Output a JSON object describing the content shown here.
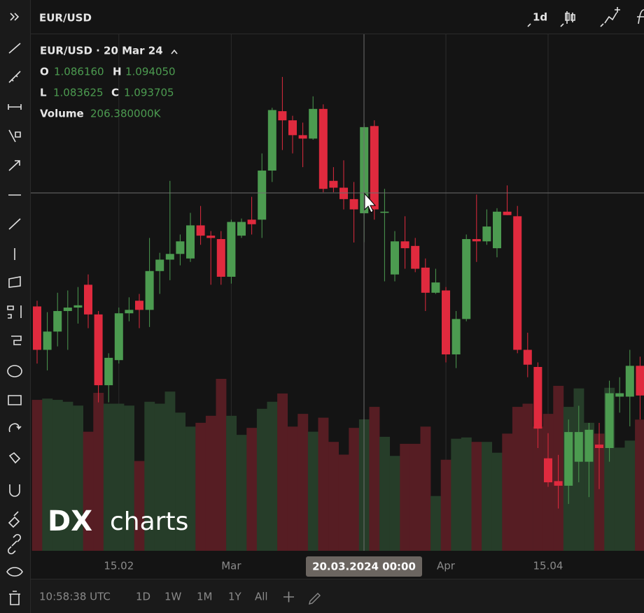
{
  "header": {
    "symbol": "EUR/USD",
    "period": "1d"
  },
  "legend": {
    "title": "EUR/USD · 20 Mar 24",
    "open_label": "O",
    "open": "1.086160",
    "high_label": "H",
    "high": "1.094050",
    "low_label": "L",
    "low": "1.083625",
    "close_label": "C",
    "close": "1.093705",
    "volume_label": "Volume",
    "volume": "206.380000K"
  },
  "chart_data": {
    "type": "candlestick",
    "categories": [
      null,
      null,
      null,
      null,
      null,
      null,
      null,
      null,
      "15.02",
      null,
      null,
      null,
      null,
      null,
      null,
      null,
      null,
      null,
      null,
      "Mar",
      null,
      null,
      null,
      null,
      null,
      null,
      null,
      null,
      null,
      null,
      null,
      null,
      null,
      null,
      null,
      null,
      null,
      null,
      null,
      null,
      "Apr",
      null,
      null,
      null,
      null,
      null,
      null,
      null,
      null,
      null,
      "15.04",
      null,
      null,
      null,
      null,
      null,
      null,
      null,
      null,
      null
    ],
    "open": [
      1.078,
      1.0742,
      1.0758,
      1.0776,
      1.0779,
      1.0799,
      1.0773,
      1.0711,
      1.0733,
      1.0774,
      1.0785,
      1.0777,
      1.0811,
      1.0821,
      1.0826,
      1.0822,
      1.0851,
      1.0842,
      1.0839,
      1.0806,
      1.0842,
      1.0856,
      1.0856,
      1.0899,
      1.0951,
      1.0943,
      1.093,
      1.0927,
      1.0953,
      1.089,
      1.0884,
      1.0874,
      1.08616,
      1.0938,
      1.0862,
      1.0808,
      1.0837,
      1.0833,
      1.0814,
      1.0792,
      1.0794,
      1.0738,
      1.0769,
      1.0839,
      1.0837,
      1.0831,
      1.0863,
      1.0859,
      1.0742,
      1.0727,
      1.0647,
      1.0627,
      1.0623,
      1.0644,
      1.0644,
      1.0659,
      1.0656,
      1.0701,
      1.0701,
      1.0728
    ],
    "high": [
      1.0785,
      1.0775,
      1.0792,
      1.0794,
      1.0797,
      1.0808,
      1.0776,
      1.0739,
      1.0779,
      1.0788,
      1.0791,
      1.084,
      1.0827,
      1.089,
      1.0843,
      1.0862,
      1.0868,
      1.0846,
      1.0846,
      1.0856,
      1.0857,
      1.0876,
      1.0914,
      1.0954,
      1.0981,
      1.0947,
      1.0941,
      1.0964,
      1.0957,
      1.0902,
      1.0908,
      1.0889,
      1.09405,
      1.0943,
      1.0883,
      1.0846,
      1.0859,
      1.084,
      1.0822,
      1.0813,
      1.0797,
      1.0776,
      1.0843,
      1.0878,
      1.0865,
      1.0866,
      1.0886,
      1.0868,
      1.0757,
      1.0731,
      1.0669,
      1.065,
      1.0681,
      1.0693,
      1.0678,
      1.0678,
      1.0715,
      1.0718,
      1.0742,
      1.0736
    ],
    "low": [
      1.073,
      1.0724,
      1.0745,
      1.0742,
      1.0765,
      1.0761,
      1.0696,
      1.0696,
      1.073,
      1.0767,
      1.0761,
      1.0762,
      1.0791,
      1.0803,
      1.0816,
      1.0819,
      1.0834,
      1.0799,
      1.0799,
      1.08,
      1.084,
      1.0843,
      1.084,
      1.0889,
      1.0917,
      1.0914,
      1.0902,
      1.0926,
      1.088,
      1.088,
      1.0865,
      1.0836,
      1.083625,
      1.0856,
      1.0802,
      1.0802,
      1.0813,
      1.081,
      1.0776,
      1.0791,
      1.0731,
      1.0726,
      1.0767,
      1.0819,
      1.0834,
      1.0823,
      1.086,
      1.0739,
      1.0718,
      1.0656,
      1.0622,
      1.0603,
      1.0607,
      1.0626,
      1.0613,
      1.062,
      1.0644,
      1.0687,
      1.0675,
      1.0681
    ],
    "close": [
      1.0742,
      1.0758,
      1.0776,
      1.0779,
      1.0781,
      1.0773,
      1.0711,
      1.0735,
      1.0774,
      1.0777,
      1.0777,
      1.0811,
      1.0821,
      1.0826,
      1.0837,
      1.0851,
      1.0842,
      1.084,
      1.0806,
      1.0854,
      1.0854,
      1.0852,
      1.0899,
      1.0952,
      1.0943,
      1.093,
      1.0927,
      1.0953,
      1.0883,
      1.0884,
      1.0874,
      1.0865,
      1.093705,
      1.0865,
      1.0863,
      1.0837,
      1.0831,
      1.0813,
      1.0792,
      1.0801,
      1.0738,
      1.0769,
      1.0839,
      1.0837,
      1.085,
      1.0863,
      1.086,
      1.0742,
      1.0729,
      1.0673,
      1.0626,
      1.0623,
      1.067,
      1.067,
      1.0672,
      1.0656,
      1.0704,
      1.0704,
      1.0728,
      1.0702
    ],
    "volume": [
      237,
      239,
      237,
      234,
      228,
      187,
      248,
      231,
      231,
      228,
      141,
      234,
      231,
      250,
      217,
      195,
      201,
      212,
      270,
      212,
      182,
      193,
      223,
      234,
      247,
      195,
      215,
      187,
      209,
      171,
      151,
      193,
      206.38,
      226,
      179,
      149,
      168,
      168,
      195,
      86,
      143,
      176,
      178,
      171,
      171,
      154,
      184,
      226,
      231,
      195,
      215,
      259,
      226,
      255,
      201,
      184,
      256,
      162,
      173,
      206
    ],
    "ylim": [
      1.0566,
      1.1019
    ],
    "volume_ylim": [
      0,
      270
    ],
    "grid": true,
    "up_color": "#4c9b50",
    "down_color": "#e02a3e",
    "up_volume_color": "#263d29",
    "down_volume_color": "#561d23",
    "crosshair_label": "20.03.2024 00:00"
  },
  "logo": {
    "mark": "DX",
    "text": "charts"
  },
  "footer": {
    "time": "10:58:38 UTC",
    "ranges": [
      "1D",
      "1W",
      "1M",
      "1Y",
      "All"
    ]
  }
}
